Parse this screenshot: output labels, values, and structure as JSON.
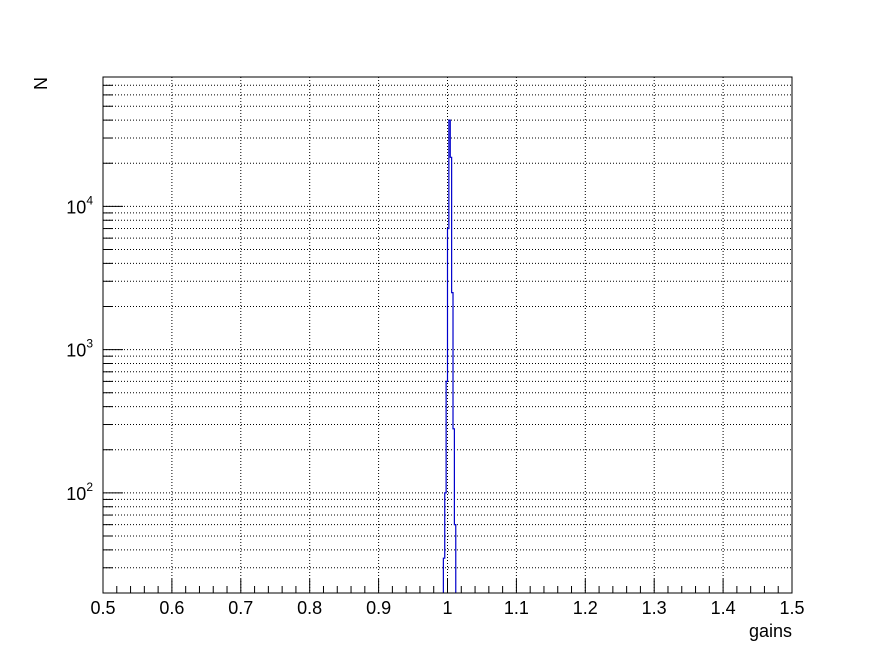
{
  "chart_data": {
    "type": "histogram",
    "title": "",
    "xlabel": "gains",
    "ylabel": "N",
    "xlim": [
      0.5,
      1.5
    ],
    "ylim": [
      20,
      80000
    ],
    "y_scale": "log",
    "grid": true,
    "x_ticks": [
      "0.5",
      "0.6",
      "0.7",
      "0.8",
      "0.9",
      "1",
      "1.1",
      "1.2",
      "1.3",
      "1.4",
      "1.5"
    ],
    "y_ticks": [
      {
        "base": "10",
        "exp": "2",
        "value": 100
      },
      {
        "base": "10",
        "exp": "3",
        "value": 1000
      },
      {
        "base": "10",
        "exp": "4",
        "value": 10000
      }
    ],
    "line_color": "#0000cc",
    "bins": [
      {
        "x0": 0.994,
        "x1": 0.996,
        "count": 35
      },
      {
        "x0": 0.996,
        "x1": 0.998,
        "count": 100
      },
      {
        "x0": 0.998,
        "x1": 1.0,
        "count": 600
      },
      {
        "x0": 1.0,
        "x1": 1.002,
        "count": 7000
      },
      {
        "x0": 1.002,
        "x1": 1.004,
        "count": 40000
      },
      {
        "x0": 1.004,
        "x1": 1.006,
        "count": 22000
      },
      {
        "x0": 1.006,
        "x1": 1.008,
        "count": 2500
      },
      {
        "x0": 1.008,
        "x1": 1.01,
        "count": 280
      },
      {
        "x0": 1.01,
        "x1": 1.012,
        "count": 60
      }
    ]
  }
}
